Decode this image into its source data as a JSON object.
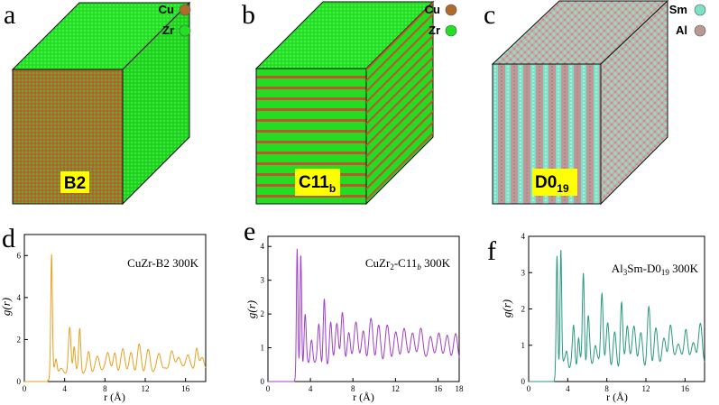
{
  "panels": [
    {
      "letter": "a",
      "label": "B2",
      "legend": [
        {
          "name": "Cu",
          "color": "#b06a2a"
        },
        {
          "name": "Zr",
          "color": "#22e022"
        }
      ]
    },
    {
      "letter": "b",
      "label_main": "C11",
      "label_sub": "b",
      "legend": [
        {
          "name": "Cu",
          "color": "#b06a2a"
        },
        {
          "name": "Zr",
          "color": "#22e022"
        }
      ]
    },
    {
      "letter": "c",
      "label_main": "D0",
      "label_sub": "19",
      "legend": [
        {
          "name": "Sm",
          "color": "#7ee0c4"
        },
        {
          "name": "Al",
          "color": "#b89a90"
        }
      ]
    }
  ],
  "label_highlight": "#ffff00",
  "chart_data": [
    {
      "type": "line",
      "panel": "d",
      "annotation": "CuZr-B2 300K",
      "xlabel": "r (Å)",
      "ylabel": "g(r)",
      "xlim": [
        0,
        18
      ],
      "ylim": [
        0,
        7
      ],
      "xticks": [
        0,
        4,
        8,
        12,
        16
      ],
      "yticks": [
        0,
        2,
        4,
        6
      ],
      "color": "#e8a020",
      "peaks": [
        [
          2.7,
          6.0,
          0.08
        ],
        [
          3.15,
          1.0,
          0.1
        ],
        [
          4.5,
          2.3,
          0.12
        ],
        [
          4.95,
          1.6,
          0.1
        ],
        [
          5.5,
          2.3,
          0.1
        ],
        [
          6.4,
          1.2,
          0.15
        ],
        [
          7.3,
          1.0,
          0.2
        ],
        [
          8.3,
          1.3,
          0.18
        ],
        [
          9.0,
          1.15,
          0.15
        ],
        [
          9.8,
          1.3,
          0.2
        ],
        [
          10.6,
          1.1,
          0.18
        ],
        [
          11.4,
          1.5,
          0.18
        ],
        [
          12.3,
          1.25,
          0.2
        ],
        [
          13.4,
          1.2,
          0.2
        ],
        [
          14.6,
          1.3,
          0.2
        ],
        [
          15.3,
          1.1,
          0.2
        ],
        [
          16.2,
          1.2,
          0.2
        ],
        [
          17.1,
          1.5,
          0.15
        ],
        [
          17.7,
          1.0,
          0.2
        ]
      ],
      "r_start": 2.3,
      "baseline": 0.85
    },
    {
      "type": "line",
      "panel": "e",
      "annotation_main": "CuZr",
      "annotation_sub": "2",
      "annotation_rest": "-C11",
      "annotation_italic": "b",
      "annotation_tail": " 300K",
      "xlabel": "r (Å)",
      "ylabel": "g(r)",
      "xlim": [
        0,
        18
      ],
      "ylim": [
        0,
        4.3
      ],
      "xticks": [
        0,
        4,
        8,
        12,
        16,
        18
      ],
      "xticklabels": [
        "0",
        "4",
        "8",
        "12",
        "16",
        "18"
      ],
      "yticks": [
        0,
        1,
        2,
        3,
        4
      ],
      "color": "#a040c8",
      "peaks": [
        [
          2.75,
          4.0,
          0.07
        ],
        [
          3.1,
          3.7,
          0.07
        ],
        [
          3.5,
          1.8,
          0.1
        ],
        [
          4.1,
          1.2,
          0.12
        ],
        [
          4.8,
          1.6,
          0.12
        ],
        [
          5.3,
          2.2,
          0.1
        ],
        [
          5.9,
          1.7,
          0.12
        ],
        [
          6.5,
          1.6,
          0.15
        ],
        [
          7.0,
          1.8,
          0.14
        ],
        [
          7.6,
          1.4,
          0.15
        ],
        [
          8.3,
          1.7,
          0.18
        ],
        [
          9.0,
          1.3,
          0.18
        ],
        [
          9.7,
          1.6,
          0.2
        ],
        [
          10.4,
          1.45,
          0.18
        ],
        [
          11.2,
          1.5,
          0.2
        ],
        [
          12.0,
          1.35,
          0.2
        ],
        [
          12.8,
          1.5,
          0.2
        ],
        [
          13.6,
          1.4,
          0.2
        ],
        [
          14.4,
          1.55,
          0.2
        ],
        [
          15.3,
          1.3,
          0.2
        ],
        [
          16.1,
          1.4,
          0.2
        ],
        [
          16.9,
          1.3,
          0.2
        ],
        [
          17.7,
          1.3,
          0.2
        ]
      ],
      "r_start": 2.5,
      "baseline": 0.75
    },
    {
      "type": "line",
      "panel": "f",
      "annotation_main": "Al",
      "annotation_sub": "3",
      "annotation_rest": "Sm-D0",
      "annotation_sub2": "19",
      "annotation_tail": " 300K",
      "xlabel": "r (Å)",
      "ylabel": "g(r)",
      "xlim": [
        0,
        18
      ],
      "ylim": [
        0,
        4
      ],
      "xticks": [
        0,
        4,
        8,
        12,
        16
      ],
      "yticks": [
        0,
        1,
        2,
        3,
        4
      ],
      "color": "#2a9a80",
      "peaks": [
        [
          2.9,
          3.5,
          0.08
        ],
        [
          3.3,
          3.6,
          0.08
        ],
        [
          3.9,
          0.7,
          0.12
        ],
        [
          4.6,
          1.3,
          0.12
        ],
        [
          5.1,
          1.1,
          0.1
        ],
        [
          5.6,
          2.85,
          0.1
        ],
        [
          6.1,
          1.6,
          0.12
        ],
        [
          6.8,
          0.9,
          0.15
        ],
        [
          7.5,
          2.4,
          0.12
        ],
        [
          8.1,
          1.4,
          0.15
        ],
        [
          8.8,
          1.1,
          0.15
        ],
        [
          9.5,
          2.0,
          0.12
        ],
        [
          10.1,
          1.5,
          0.15
        ],
        [
          10.8,
          1.4,
          0.18
        ],
        [
          11.5,
          1.1,
          0.18
        ],
        [
          12.3,
          1.8,
          0.15
        ],
        [
          13.0,
          1.25,
          0.18
        ],
        [
          13.8,
          1.0,
          0.2
        ],
        [
          14.5,
          1.5,
          0.18
        ],
        [
          15.3,
          1.0,
          0.2
        ],
        [
          16.1,
          1.4,
          0.18
        ],
        [
          16.9,
          1.0,
          0.2
        ],
        [
          17.6,
          1.4,
          0.2
        ]
      ],
      "r_start": 2.6,
      "baseline": 0.75
    }
  ]
}
